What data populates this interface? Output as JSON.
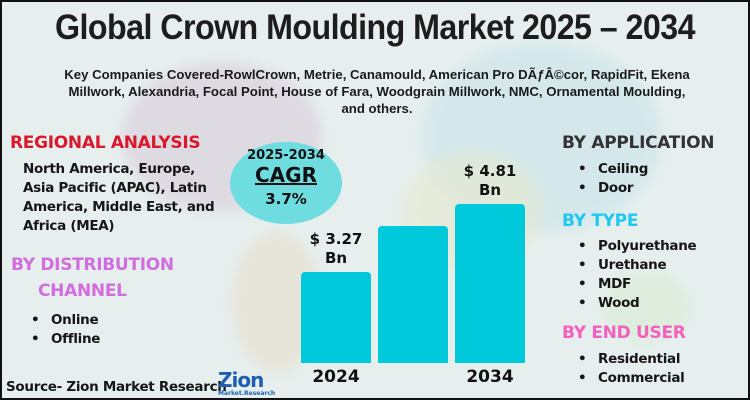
{
  "title": "Global Crown Moulding Market 2025 – 2034",
  "key_companies": "Key Companies Covered-RowlCrown, Metrie, Canamould, American Pro DÃƒÂ©cor, RapidFit, Ekena Millwork, Alexandria, Focal Point, House of Fara, Woodgrain Millwork, NMC, Ornamental Moulding, and others.",
  "regional": {
    "heading": "REGIONAL ANALYSIS",
    "text": "North America, Europe, Asia Pacific (APAC), Latin America, Middle East, and Africa (MEA)",
    "color": "#d9182b"
  },
  "distribution": {
    "heading_line1": "BY DISTRIBUTION",
    "heading_line2": "CHANNEL",
    "items": [
      "Online",
      "Offline"
    ],
    "color": "#d16ddf"
  },
  "application": {
    "heading": "BY APPLICATION",
    "items": [
      "Ceiling",
      "Door"
    ],
    "color": "#333333"
  },
  "type": {
    "heading": "BY TYPE",
    "items": [
      "Polyurethane",
      "Urethane",
      "MDF",
      "Wood"
    ],
    "color": "#1ec8f0"
  },
  "end_user": {
    "heading": "BY END USER",
    "items": [
      "Residential",
      "Commercial"
    ],
    "color": "#f25fbf"
  },
  "cagr": {
    "period": "2025-2034",
    "label": "CAGR",
    "value": "3.7%"
  },
  "source": "Source- Zion Market Research",
  "logo": {
    "text": "Zion",
    "subtext": "Market.Research"
  },
  "chart_data": {
    "type": "bar",
    "categories": [
      "2024",
      "",
      "2034"
    ],
    "values": [
      3.27,
      4.3,
      4.81
    ],
    "data_labels": [
      {
        "line1": "$ 3.27",
        "line2": "Bn"
      },
      null,
      {
        "line1": "$ 4.81",
        "line2": "Bn"
      }
    ],
    "unit": "USD Bn",
    "bar_color": "#00c9dc",
    "grid": false
  }
}
